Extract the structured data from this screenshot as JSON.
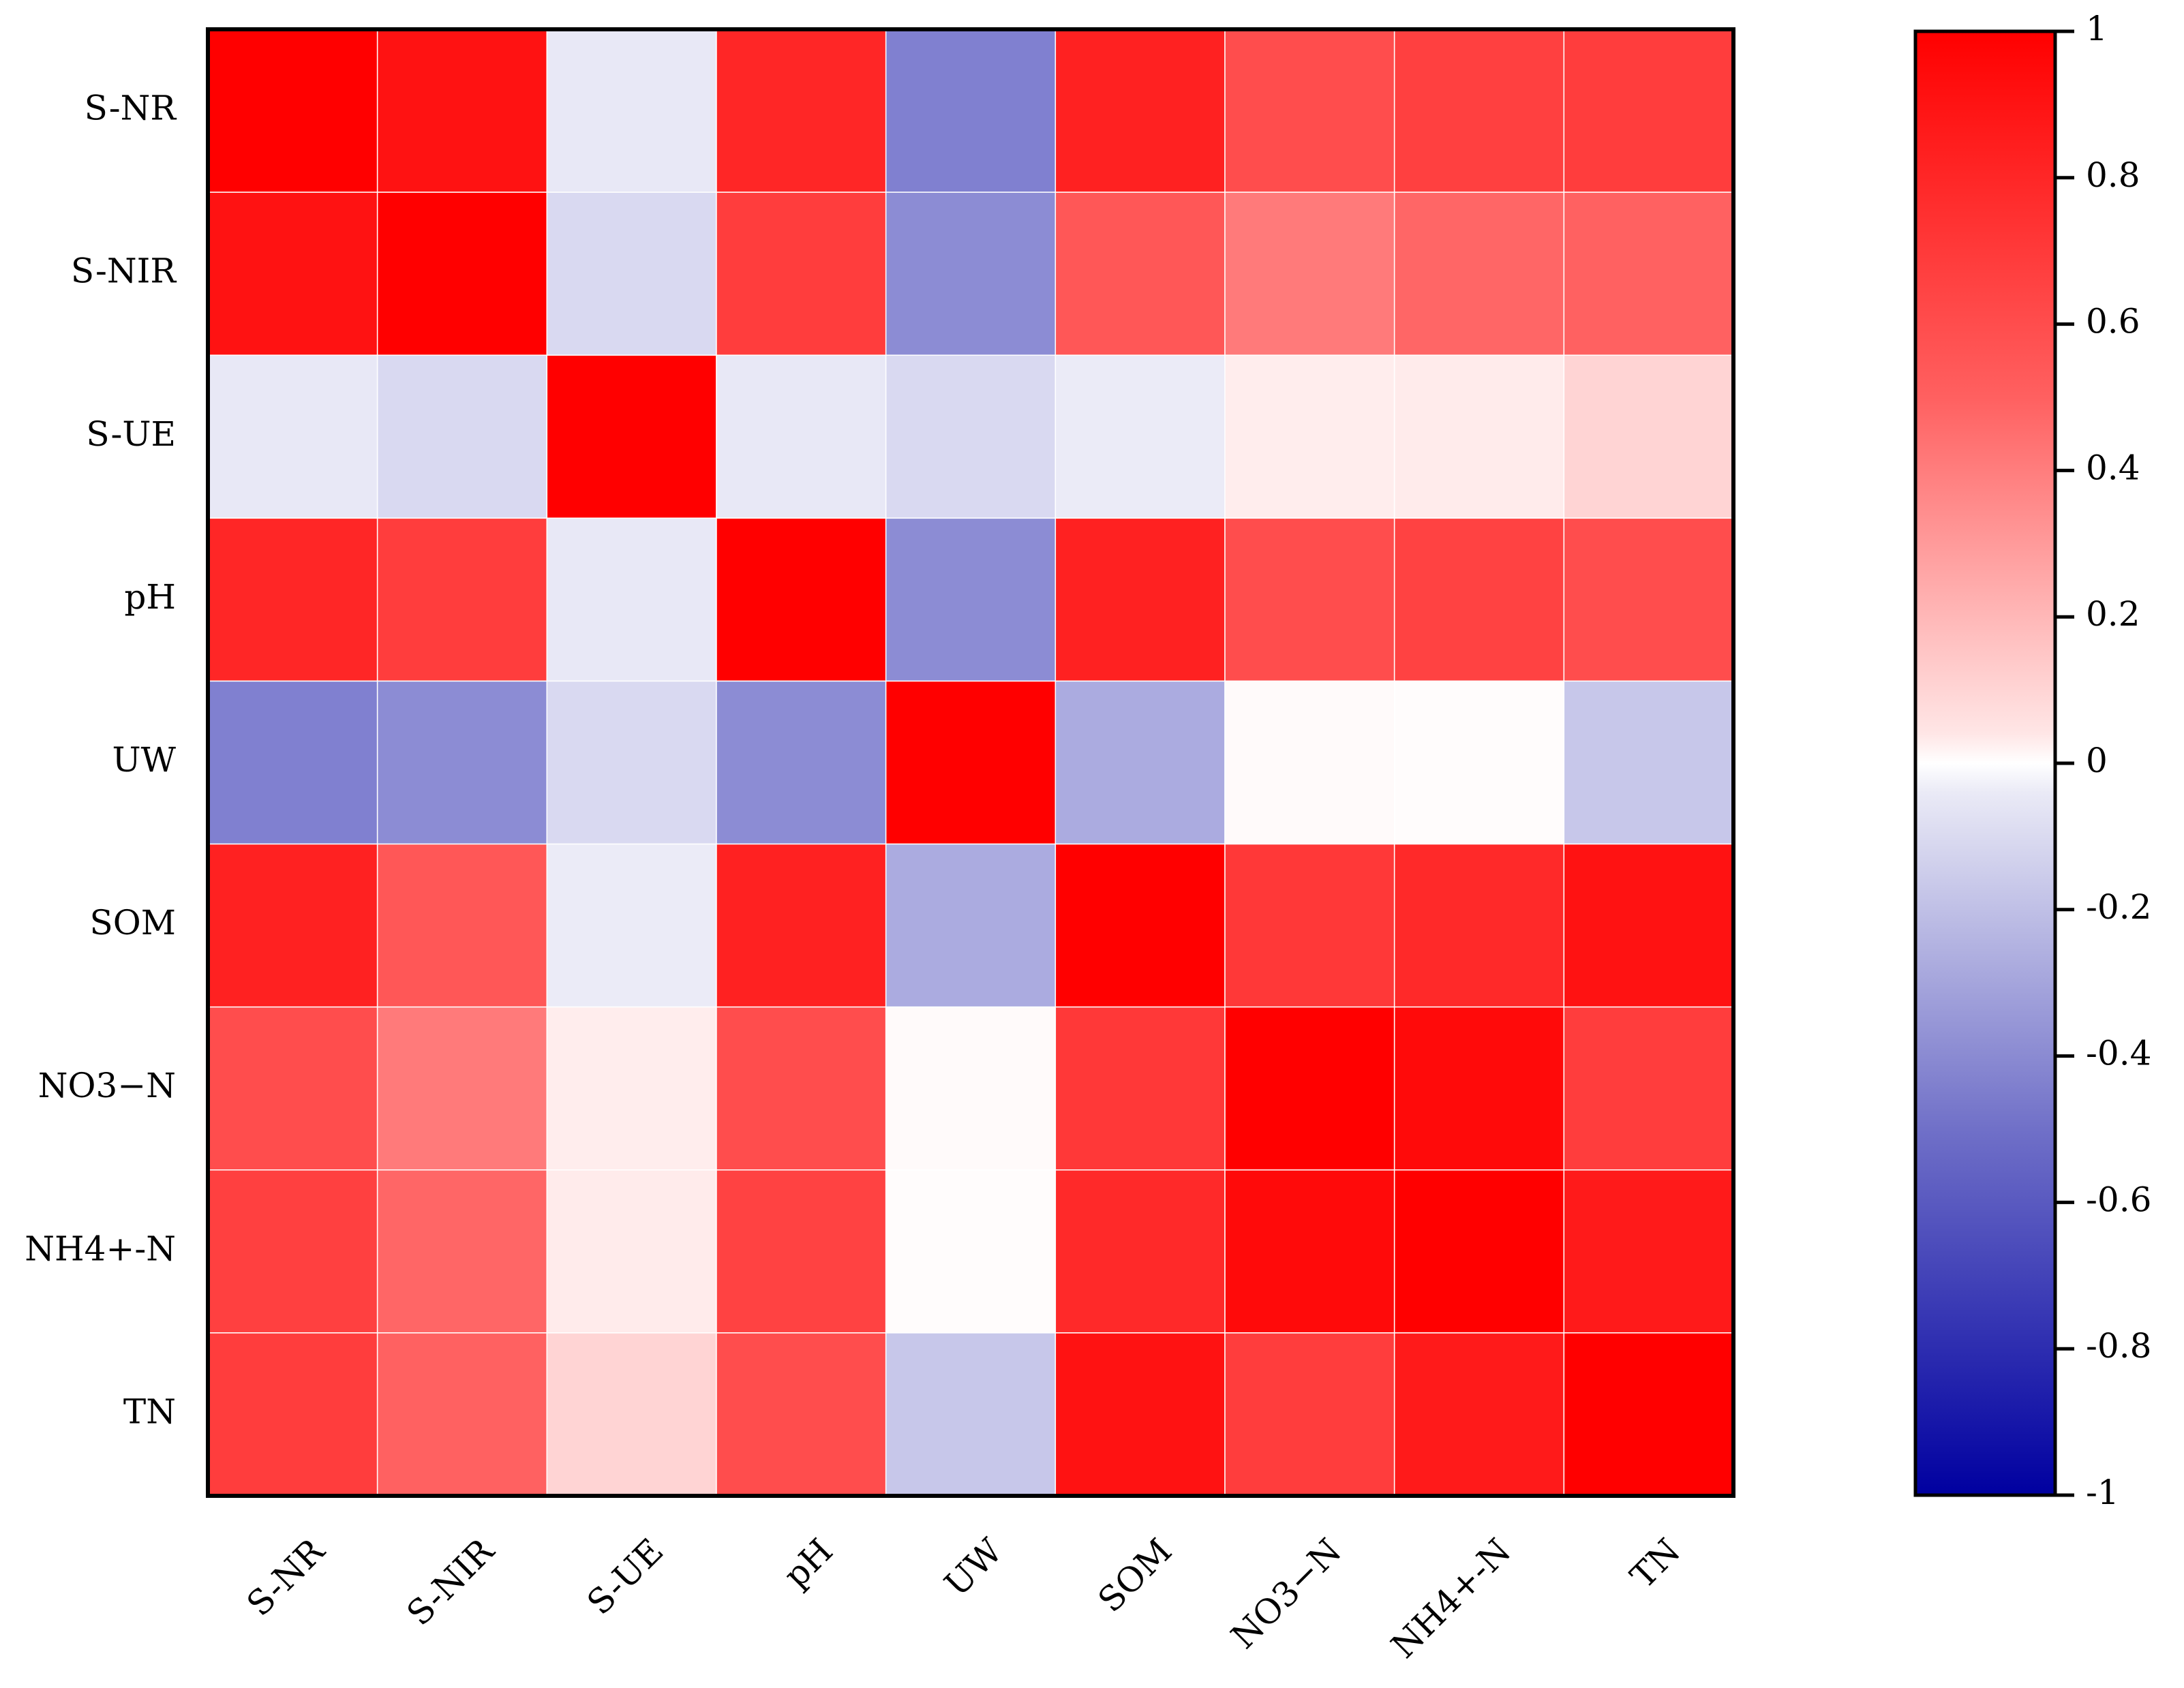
{
  "chart_data": {
    "type": "heatmap",
    "title": "",
    "xlabel": "",
    "ylabel": "",
    "rows": [
      "S-NR",
      "S-NIR",
      "S-UE",
      "pH",
      "UW",
      "SOM",
      "NO3−N",
      "NH4+-N",
      "TN"
    ],
    "columns": [
      "S-NR",
      "S-NIR",
      "S-UE",
      "pH",
      "UW",
      "SOM",
      "NO3−N",
      "NH4+-N",
      "TN"
    ],
    "values": [
      [
        1.0,
        0.93,
        -0.09,
        0.85,
        -0.5,
        0.87,
        0.7,
        0.75,
        0.76
      ],
      [
        0.93,
        1.0,
        -0.15,
        0.76,
        -0.45,
        0.66,
        0.52,
        0.6,
        0.62
      ],
      [
        -0.09,
        -0.15,
        1.0,
        -0.09,
        -0.15,
        -0.08,
        0.07,
        0.08,
        0.17
      ],
      [
        0.85,
        0.76,
        -0.09,
        1.0,
        -0.45,
        0.87,
        0.7,
        0.74,
        0.7
      ],
      [
        -0.5,
        -0.45,
        -0.15,
        -0.45,
        1.0,
        -0.33,
        0.02,
        0.01,
        -0.22
      ],
      [
        0.87,
        0.66,
        -0.08,
        0.87,
        -0.33,
        1.0,
        0.78,
        0.84,
        0.93
      ],
      [
        0.7,
        0.52,
        0.07,
        0.7,
        0.02,
        0.78,
        1.0,
        0.96,
        0.76
      ],
      [
        0.75,
        0.6,
        0.08,
        0.74,
        0.01,
        0.84,
        0.96,
        1.0,
        0.9
      ],
      [
        0.76,
        0.62,
        0.17,
        0.7,
        -0.22,
        0.93,
        0.76,
        0.9,
        1.0
      ]
    ],
    "colorbar": {
      "range": [
        -1,
        1
      ],
      "ticks": [
        "1",
        "0.8",
        "0.6",
        "0.4",
        "0.2",
        "0",
        "-0.2",
        "-0.4",
        "-0.6",
        "-0.8",
        "-1"
      ],
      "tick_values": [
        1,
        0.8,
        0.6,
        0.4,
        0.2,
        0,
        -0.2,
        -0.4,
        -0.6,
        -0.8,
        -1
      ]
    },
    "colors": {
      "high": "#ff0000",
      "mid": "#ffffff",
      "low": "#0000a0"
    }
  }
}
